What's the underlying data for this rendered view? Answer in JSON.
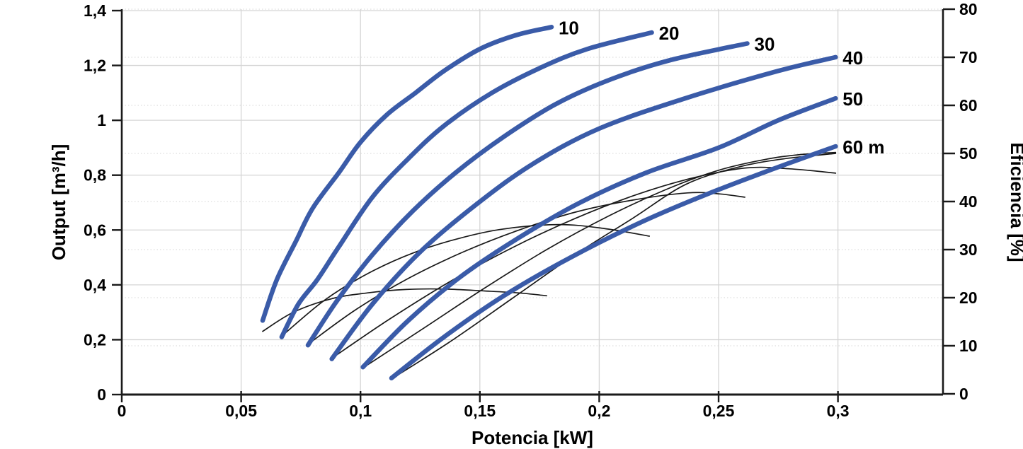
{
  "chart_data": {
    "type": "line",
    "title": "",
    "xlabel": "Potencia [kW]",
    "ylabel_left": "Output [m³/h]",
    "ylabel_right": "Eficiencia [%]",
    "xlim": [
      0,
      0.344
    ],
    "ylim_left": [
      0,
      1.4
    ],
    "ylim_right": [
      0,
      80
    ],
    "grid": {
      "vertical": "solid",
      "horizontal_major": "solid",
      "horizontal_minor": "dotted",
      "legend": "none"
    },
    "x_ticks": [
      {
        "v": 0,
        "label": "0"
      },
      {
        "v": 0.05,
        "label": "0,05"
      },
      {
        "v": 0.1,
        "label": "0,1"
      },
      {
        "v": 0.15,
        "label": "0,15"
      },
      {
        "v": 0.2,
        "label": "0,2"
      },
      {
        "v": 0.25,
        "label": "0,25"
      },
      {
        "v": 0.3,
        "label": "0,3"
      }
    ],
    "y_left_ticks": [
      {
        "v": 0,
        "label": "0"
      },
      {
        "v": 0.2,
        "label": "0,2"
      },
      {
        "v": 0.4,
        "label": "0,4"
      },
      {
        "v": 0.6,
        "label": "0,6"
      },
      {
        "v": 0.8,
        "label": "0,8"
      },
      {
        "v": 1.0,
        "label": "1"
      },
      {
        "v": 1.2,
        "label": "1,2"
      },
      {
        "v": 1.4,
        "label": "1,4"
      }
    ],
    "y_right_ticks": [
      {
        "v": 0,
        "label": "0"
      },
      {
        "v": 10,
        "label": "10"
      },
      {
        "v": 20,
        "label": "20"
      },
      {
        "v": 30,
        "label": "30"
      },
      {
        "v": 40,
        "label": "40"
      },
      {
        "v": 50,
        "label": "50"
      },
      {
        "v": 60,
        "label": "60"
      },
      {
        "v": 70,
        "label": "70"
      },
      {
        "v": 80,
        "label": "80"
      }
    ],
    "colors": {
      "flow_curve": "#3a5ba8",
      "efficiency_curve": "#1a1a1a",
      "grid_major": "#d5d5d5",
      "grid_minor": "#dedede",
      "axis": "#1a1a1a",
      "text": "#000000"
    },
    "flow_series": [
      {
        "label": "10",
        "head_m": 10,
        "axis": "left",
        "points": [
          [
            0.059,
            0.27
          ],
          [
            0.065,
            0.42
          ],
          [
            0.073,
            0.56
          ],
          [
            0.08,
            0.68
          ],
          [
            0.091,
            0.81
          ],
          [
            0.1,
            0.92
          ],
          [
            0.111,
            1.02
          ],
          [
            0.123,
            1.1
          ],
          [
            0.135,
            1.18
          ],
          [
            0.15,
            1.26
          ],
          [
            0.165,
            1.31
          ],
          [
            0.18,
            1.34
          ]
        ]
      },
      {
        "label": "20",
        "head_m": 20,
        "axis": "left",
        "points": [
          [
            0.067,
            0.21
          ],
          [
            0.074,
            0.33
          ],
          [
            0.082,
            0.42
          ],
          [
            0.091,
            0.54
          ],
          [
            0.105,
            0.72
          ],
          [
            0.12,
            0.86
          ],
          [
            0.135,
            0.98
          ],
          [
            0.155,
            1.1
          ],
          [
            0.175,
            1.19
          ],
          [
            0.195,
            1.26
          ],
          [
            0.222,
            1.32
          ]
        ]
      },
      {
        "label": "30",
        "head_m": 30,
        "axis": "left",
        "points": [
          [
            0.078,
            0.18
          ],
          [
            0.09,
            0.34
          ],
          [
            0.105,
            0.51
          ],
          [
            0.122,
            0.67
          ],
          [
            0.14,
            0.81
          ],
          [
            0.16,
            0.94
          ],
          [
            0.182,
            1.06
          ],
          [
            0.205,
            1.15
          ],
          [
            0.23,
            1.22
          ],
          [
            0.262,
            1.28
          ]
        ]
      },
      {
        "label": "40",
        "head_m": 40,
        "axis": "left",
        "points": [
          [
            0.088,
            0.13
          ],
          [
            0.105,
            0.33
          ],
          [
            0.125,
            0.52
          ],
          [
            0.148,
            0.69
          ],
          [
            0.172,
            0.84
          ],
          [
            0.2,
            0.97
          ],
          [
            0.236,
            1.08
          ],
          [
            0.275,
            1.18
          ],
          [
            0.299,
            1.23
          ]
        ]
      },
      {
        "label": "50",
        "head_m": 50,
        "axis": "left",
        "points": [
          [
            0.101,
            0.1
          ],
          [
            0.12,
            0.27
          ],
          [
            0.142,
            0.43
          ],
          [
            0.166,
            0.57
          ],
          [
            0.192,
            0.7
          ],
          [
            0.22,
            0.81
          ],
          [
            0.25,
            0.9
          ],
          [
            0.275,
            1.0
          ],
          [
            0.299,
            1.08
          ]
        ]
      },
      {
        "label": "60 m",
        "head_m": 60,
        "axis": "left",
        "points": [
          [
            0.113,
            0.06
          ],
          [
            0.135,
            0.21
          ],
          [
            0.16,
            0.36
          ],
          [
            0.188,
            0.5
          ],
          [
            0.218,
            0.63
          ],
          [
            0.245,
            0.73
          ],
          [
            0.272,
            0.82
          ],
          [
            0.299,
            0.905
          ]
        ]
      }
    ],
    "efficiency_series": [
      {
        "head_m": 10,
        "axis": "right",
        "points": [
          [
            0.059,
            13.0
          ],
          [
            0.072,
            17.0
          ],
          [
            0.088,
            19.8
          ],
          [
            0.103,
            21.0
          ],
          [
            0.119,
            21.7
          ],
          [
            0.135,
            21.8
          ],
          [
            0.152,
            21.4
          ],
          [
            0.166,
            21.0
          ],
          [
            0.178,
            20.4
          ]
        ]
      },
      {
        "head_m": 20,
        "axis": "right",
        "points": [
          [
            0.067,
            12.0
          ],
          [
            0.085,
            19.5
          ],
          [
            0.103,
            25.0
          ],
          [
            0.122,
            29.3
          ],
          [
            0.141,
            32.3
          ],
          [
            0.16,
            34.3
          ],
          [
            0.183,
            35.2
          ],
          [
            0.202,
            34.4
          ],
          [
            0.221,
            32.8
          ]
        ]
      },
      {
        "head_m": 30,
        "axis": "right",
        "points": [
          [
            0.078,
            10.3
          ],
          [
            0.098,
            17.5
          ],
          [
            0.12,
            24.0
          ],
          [
            0.143,
            29.5
          ],
          [
            0.166,
            34.0
          ],
          [
            0.19,
            37.8
          ],
          [
            0.214,
            40.3
          ],
          [
            0.237,
            41.8
          ],
          [
            0.25,
            41.6
          ],
          [
            0.261,
            40.9
          ]
        ]
      },
      {
        "head_m": 40,
        "axis": "right",
        "points": [
          [
            0.088,
            7.4
          ],
          [
            0.112,
            15.5
          ],
          [
            0.138,
            23.5
          ],
          [
            0.164,
            30.5
          ],
          [
            0.19,
            36.5
          ],
          [
            0.216,
            41.5
          ],
          [
            0.24,
            45.0
          ],
          [
            0.262,
            47.0
          ],
          [
            0.28,
            46.8
          ],
          [
            0.299,
            45.9
          ]
        ]
      },
      {
        "head_m": 50,
        "axis": "right",
        "points": [
          [
            0.101,
            5.4
          ],
          [
            0.126,
            13.5
          ],
          [
            0.152,
            22.0
          ],
          [
            0.178,
            30.0
          ],
          [
            0.204,
            37.0
          ],
          [
            0.228,
            42.5
          ],
          [
            0.25,
            46.5
          ],
          [
            0.27,
            48.8
          ],
          [
            0.285,
            49.8
          ],
          [
            0.299,
            50.2
          ]
        ]
      },
      {
        "head_m": 60,
        "axis": "right",
        "points": [
          [
            0.113,
            3.1
          ],
          [
            0.138,
            11.0
          ],
          [
            0.164,
            20.0
          ],
          [
            0.19,
            29.0
          ],
          [
            0.214,
            36.5
          ],
          [
            0.236,
            43.5
          ],
          [
            0.257,
            47.0
          ],
          [
            0.276,
            48.8
          ],
          [
            0.299,
            50.0
          ]
        ]
      }
    ]
  }
}
